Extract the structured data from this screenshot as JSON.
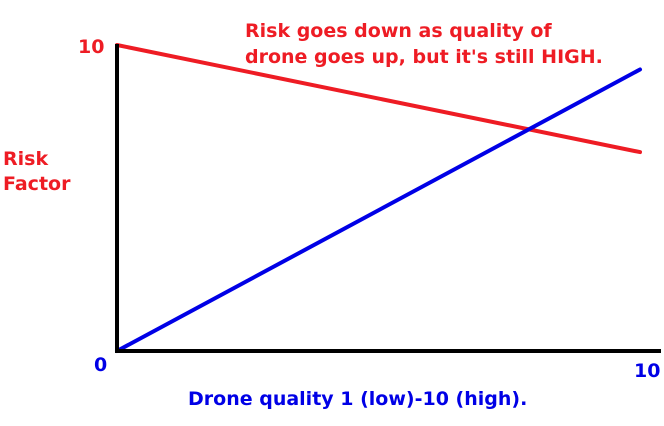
{
  "chart_data": {
    "type": "line",
    "title": "",
    "annotation_lines": [
      "Risk goes down as quality of",
      "drone goes up, but it's still HIGH."
    ],
    "ylabel_lines": [
      "Risk",
      "Factor"
    ],
    "xlabel": "Drone quality 1 (low)-10 (high).",
    "y_ticks": [
      "10",
      "0"
    ],
    "x_ticks": [
      "10"
    ],
    "xlim": [
      0,
      10
    ],
    "ylim": [
      0,
      10
    ],
    "grid": false,
    "series": [
      {
        "x": [
          0,
          10
        ],
        "y": [
          10,
          6.5
        ],
        "color": "#ee1c24"
      },
      {
        "x": [
          0,
          10
        ],
        "y": [
          0,
          9.2
        ],
        "color": "#0000e6"
      }
    ],
    "colors": {
      "axis": "#000000",
      "red_text": "#ee1c24",
      "blue_text": "#0000e6"
    }
  }
}
